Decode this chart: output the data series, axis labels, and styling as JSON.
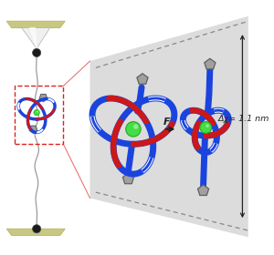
{
  "bg_color": "#ffffff",
  "plate_color": "#c8c882",
  "plate_color_dark": "#b8b870",
  "cone_color_light": "#f0f0f0",
  "cone_color_dark": "#b0b0b0",
  "string_color": "#909090",
  "bead_color": "#1a1a1a",
  "knot_blue": "#1a44dd",
  "knot_red": "#cc1818",
  "green_ball": "#44dd44",
  "green_ball_dark": "#20aa20",
  "pent_color": "#a0a0a0",
  "pent_edge": "#606060",
  "panel_bg": "#d8d8d8",
  "dashed_color": "#888888",
  "arrow_color": "#222222",
  "red_box_color": "#dd2222",
  "force_label": "F",
  "delta_chi_label": "Δχ= 1.1 nm"
}
